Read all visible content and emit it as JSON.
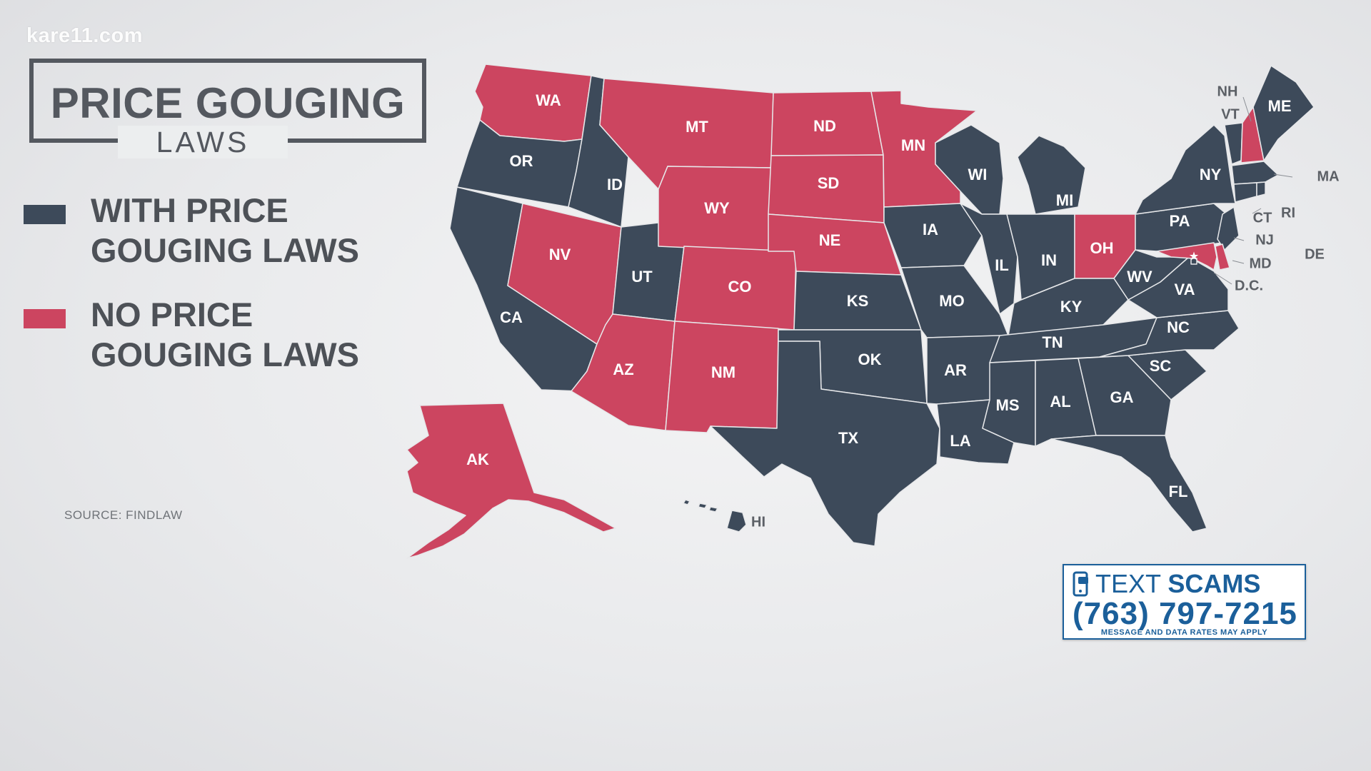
{
  "watermark": "kare11.com",
  "title": {
    "main": "PRICE GOUGING",
    "sub": "LAWS"
  },
  "legend": [
    {
      "label": "WITH PRICE\nGOUGING LAWS",
      "color": "#3d4a5a"
    },
    {
      "label": "NO PRICE\nGOUGING LAWS",
      "color": "#cc4560"
    }
  ],
  "source": "SOURCE: FINDLAW",
  "colors": {
    "with_laws": "#3d4a5a",
    "no_laws": "#cc4560",
    "border": "#e7e8ea"
  },
  "map": {
    "states": [
      {
        "abbr": "WA",
        "law": "no"
      },
      {
        "abbr": "OR",
        "law": "yes"
      },
      {
        "abbr": "CA",
        "law": "yes"
      },
      {
        "abbr": "ID",
        "law": "yes"
      },
      {
        "abbr": "NV",
        "law": "no"
      },
      {
        "abbr": "UT",
        "law": "yes"
      },
      {
        "abbr": "AZ",
        "law": "no"
      },
      {
        "abbr": "MT",
        "law": "no"
      },
      {
        "abbr": "WY",
        "law": "no"
      },
      {
        "abbr": "CO",
        "law": "no"
      },
      {
        "abbr": "NM",
        "law": "no"
      },
      {
        "abbr": "ND",
        "law": "no"
      },
      {
        "abbr": "SD",
        "law": "no"
      },
      {
        "abbr": "NE",
        "law": "no"
      },
      {
        "abbr": "KS",
        "law": "yes"
      },
      {
        "abbr": "OK",
        "law": "yes"
      },
      {
        "abbr": "TX",
        "law": "yes"
      },
      {
        "abbr": "MN",
        "law": "no"
      },
      {
        "abbr": "IA",
        "law": "yes"
      },
      {
        "abbr": "MO",
        "law": "yes"
      },
      {
        "abbr": "AR",
        "law": "yes"
      },
      {
        "abbr": "LA",
        "law": "yes"
      },
      {
        "abbr": "WI",
        "law": "yes"
      },
      {
        "abbr": "IL",
        "law": "yes"
      },
      {
        "abbr": "MI",
        "law": "yes"
      },
      {
        "abbr": "IN",
        "law": "yes"
      },
      {
        "abbr": "OH",
        "law": "no"
      },
      {
        "abbr": "KY",
        "law": "yes"
      },
      {
        "abbr": "TN",
        "law": "yes"
      },
      {
        "abbr": "MS",
        "law": "yes"
      },
      {
        "abbr": "AL",
        "law": "yes"
      },
      {
        "abbr": "GA",
        "law": "yes"
      },
      {
        "abbr": "FL",
        "law": "yes"
      },
      {
        "abbr": "SC",
        "law": "yes"
      },
      {
        "abbr": "NC",
        "law": "yes"
      },
      {
        "abbr": "VA",
        "law": "yes"
      },
      {
        "abbr": "WV",
        "law": "yes"
      },
      {
        "abbr": "PA",
        "law": "yes"
      },
      {
        "abbr": "NY",
        "law": "yes"
      },
      {
        "abbr": "VT",
        "law": "yes"
      },
      {
        "abbr": "NH",
        "law": "no"
      },
      {
        "abbr": "ME",
        "law": "yes"
      },
      {
        "abbr": "MA",
        "law": "yes"
      },
      {
        "abbr": "RI",
        "law": "yes"
      },
      {
        "abbr": "CT",
        "law": "yes"
      },
      {
        "abbr": "NJ",
        "law": "yes"
      },
      {
        "abbr": "DE",
        "law": "no"
      },
      {
        "abbr": "MD",
        "law": "no"
      },
      {
        "abbr": "D.C.",
        "law": "yes"
      },
      {
        "abbr": "AK",
        "law": "no"
      },
      {
        "abbr": "HI",
        "law": "yes"
      }
    ]
  },
  "promo": {
    "title_prefix": "TEXT ",
    "title_bold": "SCAMS",
    "number": "(763) 797-7215",
    "disclaimer": "MESSAGE AND DATA RATES MAY APPLY",
    "icon": "phone-chat-icon"
  }
}
